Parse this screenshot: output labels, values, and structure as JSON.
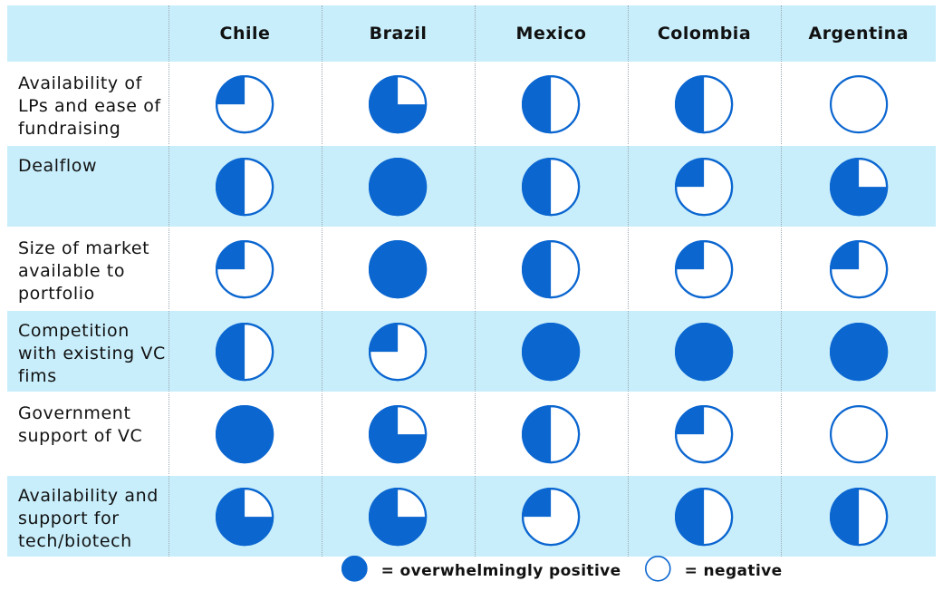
{
  "colors": {
    "fill": "#0b66d0",
    "stroke": "#0b66d0",
    "header_bg": "#c8eefb",
    "shade_bg": "#c8eefb"
  },
  "chart_data": {
    "type": "table",
    "columns": [
      "Chile",
      "Brazil",
      "Mexico",
      "Colombia",
      "Argentina"
    ],
    "rows": [
      {
        "label": "Availability of LPs and ease of fundraising",
        "values": [
          0.25,
          0.75,
          0.5,
          0.5,
          0
        ]
      },
      {
        "label": "Dealflow",
        "values": [
          0.5,
          1,
          0.5,
          0.25,
          0.75
        ]
      },
      {
        "label": "Size of market available to portfolio",
        "values": [
          0.25,
          1,
          0.5,
          0.25,
          0.25
        ]
      },
      {
        "label": "Competition with existing VC fims",
        "values": [
          0.5,
          0.25,
          1,
          1,
          1
        ]
      },
      {
        "label": "Government support of VC",
        "values": [
          1,
          0.75,
          0.5,
          0.25,
          0
        ]
      },
      {
        "label": "Availability and support for tech/biotech",
        "values": [
          0.75,
          0.75,
          0.25,
          0.5,
          0.5
        ]
      }
    ],
    "legend": [
      {
        "label": "= overwhelmingly positive",
        "value": 1
      },
      {
        "label": "= negative",
        "value": 0
      }
    ]
  }
}
